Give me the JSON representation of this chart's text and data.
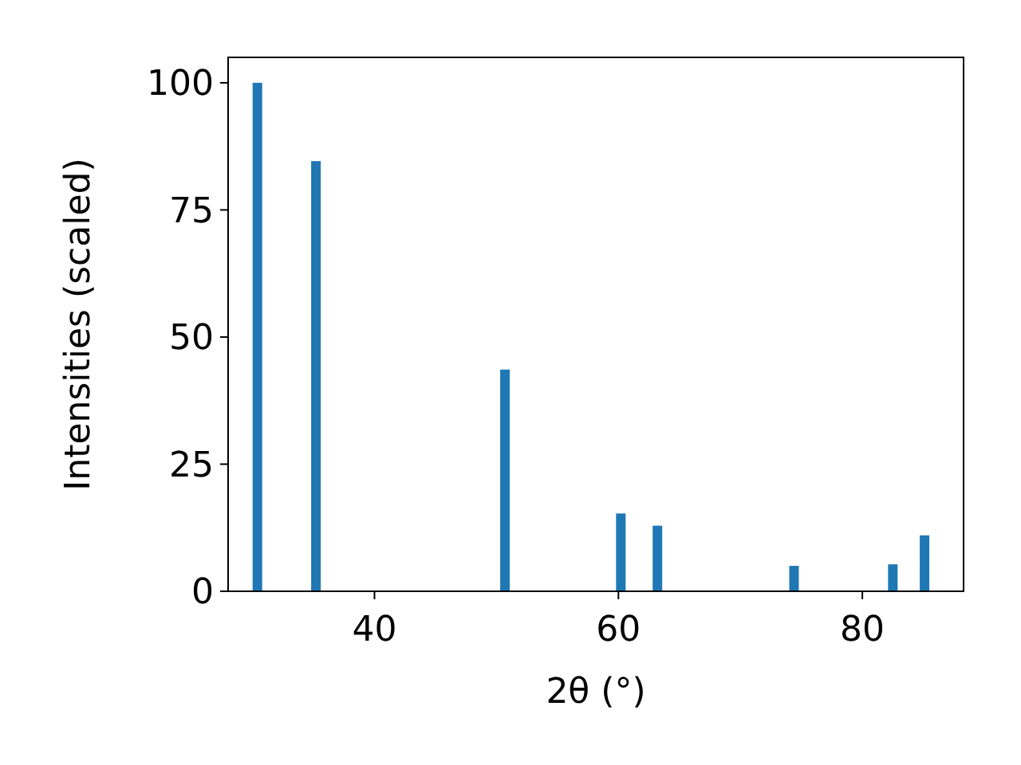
{
  "chart_data": {
    "type": "bar",
    "xlabel": "2θ (°)",
    "ylabel": "Intensities (scaled)",
    "x": [
      30.4,
      35.2,
      50.7,
      60.2,
      63.2,
      74.4,
      82.5,
      85.1
    ],
    "values": [
      100,
      84.6,
      43.6,
      15.3,
      12.9,
      5.0,
      5.3,
      11.0
    ],
    "color": "#1f77b4",
    "xlim": [
      28.0,
      88.3
    ],
    "xticks": [
      40,
      60,
      80
    ],
    "ylim": [
      0,
      105
    ],
    "yticks": [
      0,
      25,
      50,
      75,
      100
    ],
    "grid": false
  }
}
